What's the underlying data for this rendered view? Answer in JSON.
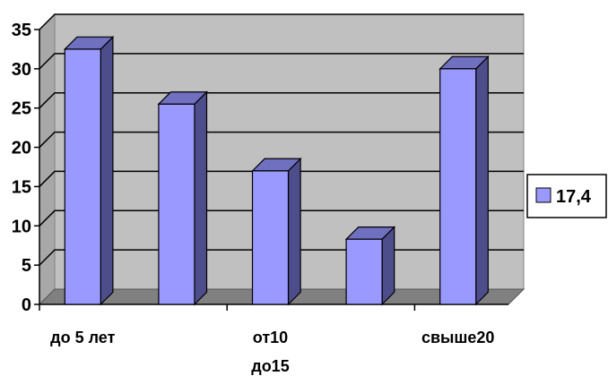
{
  "chart_data": {
    "type": "bar",
    "style": "3d-column",
    "categories": [
      "до 5 лет",
      "",
      "от10\nдо15",
      "",
      "свыше20"
    ],
    "series": [
      {
        "name": "17,4",
        "values": [
          32.5,
          25.5,
          17,
          8.3,
          30
        ]
      }
    ],
    "ylim": [
      0,
      35
    ],
    "yticks": [
      0,
      5,
      10,
      15,
      20,
      25,
      30,
      35
    ],
    "title": "",
    "xlabel": "",
    "ylabel": "",
    "grid": true,
    "legend_position": "right",
    "colors": {
      "bar_front": "#9999ff",
      "bar_side": "#4d4d8c",
      "bar_top": "#7070c0",
      "wall": "#c0c0c0",
      "floor": "#808080",
      "gridline": "#000000"
    }
  }
}
